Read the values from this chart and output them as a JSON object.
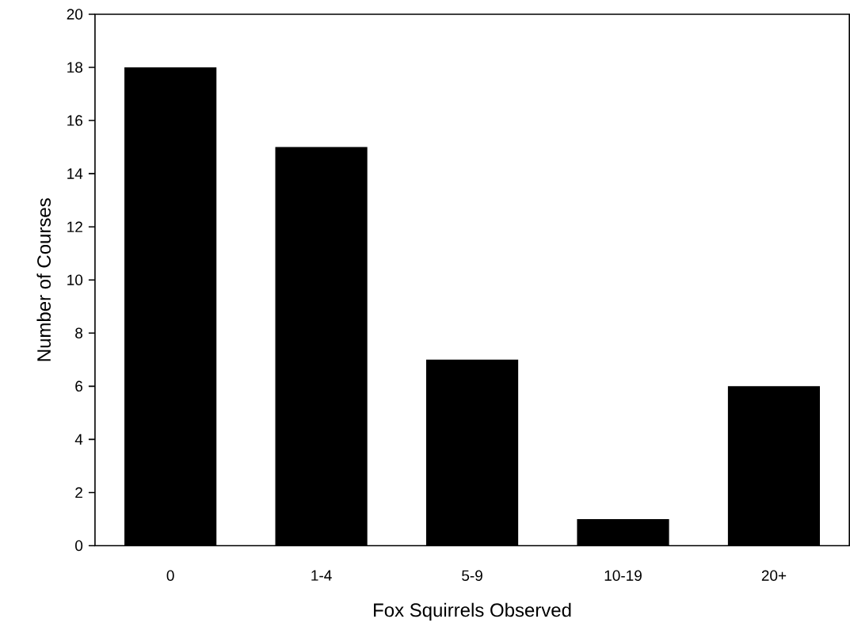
{
  "chart_data": {
    "type": "bar",
    "xlabel": "Fox Squirrels Observed",
    "ylabel": "Number of Courses",
    "categories": [
      "0",
      "1-4",
      "5-9",
      "10-19",
      "20+"
    ],
    "values": [
      18,
      15,
      7,
      1,
      6
    ],
    "color": "#000000",
    "ylim": [
      0,
      20
    ],
    "yticks": [
      0,
      2,
      4,
      6,
      8,
      10,
      12,
      14,
      16,
      18,
      20
    ],
    "grid": false
  }
}
